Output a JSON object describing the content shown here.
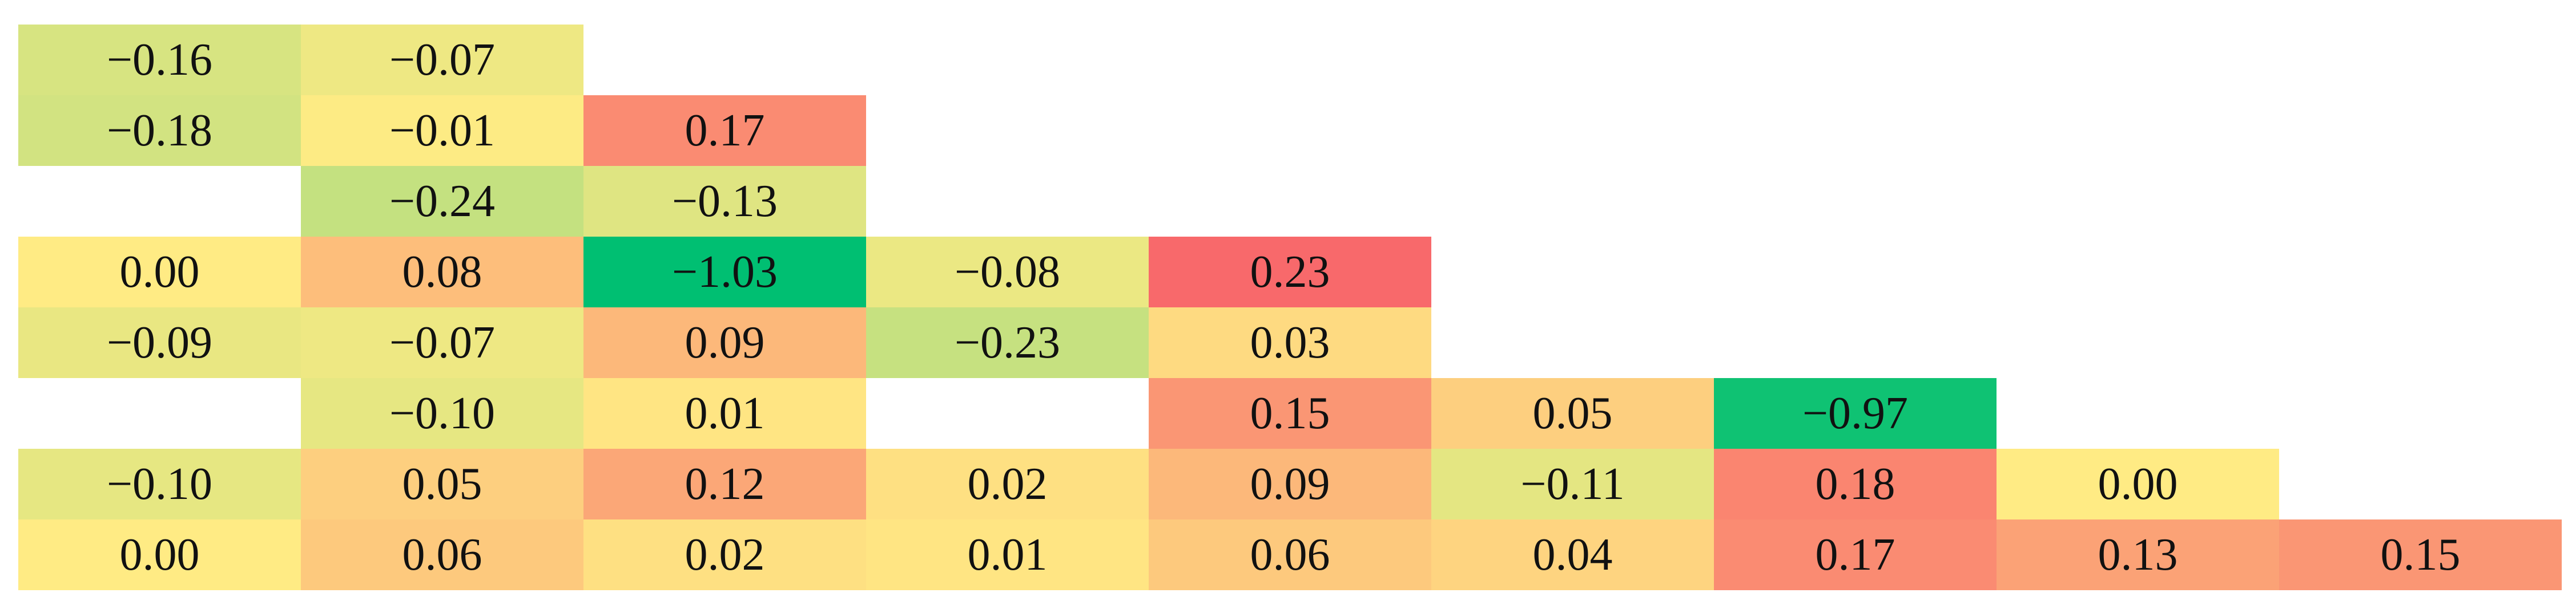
{
  "table": {
    "color_scale": [
      {
        "value": -1.03,
        "color": "#00bf72"
      },
      {
        "value": 0,
        "color": "#ffeb84"
      },
      {
        "value": 0.23,
        "color": "#f8696b"
      }
    ],
    "rows": [
      [
        {
          "value": -0.16,
          "label": "−0.16"
        },
        {
          "value": -0.07,
          "label": "−0.07"
        }
      ],
      [
        {
          "value": -0.18,
          "label": "−0.18"
        },
        {
          "value": -0.01,
          "label": "−0.01"
        },
        {
          "value": 0.17,
          "label": "0.17"
        }
      ],
      [
        null,
        {
          "value": -0.24,
          "label": "−0.24"
        },
        {
          "value": -0.13,
          "label": "−0.13"
        }
      ],
      [
        {
          "value": 0,
          "label": "0.00"
        },
        {
          "value": 0.08,
          "label": "0.08"
        },
        {
          "value": -1.03,
          "label": "−1.03"
        },
        {
          "value": -0.08,
          "label": "−0.08"
        },
        {
          "value": 0.23,
          "label": "0.23"
        }
      ],
      [
        {
          "value": -0.09,
          "label": "−0.09"
        },
        {
          "value": -0.07,
          "label": "−0.07"
        },
        {
          "value": 0.09,
          "label": "0.09"
        },
        {
          "value": -0.23,
          "label": "−0.23"
        },
        {
          "value": 0.03,
          "label": "0.03"
        }
      ],
      [
        null,
        {
          "value": -0.1,
          "label": "−0.10"
        },
        {
          "value": 0.01,
          "label": "0.01"
        },
        null,
        {
          "value": 0.15,
          "label": "0.15"
        },
        {
          "value": 0.05,
          "label": "0.05"
        },
        {
          "value": -0.97,
          "label": "−0.97"
        }
      ],
      [
        {
          "value": -0.1,
          "label": "−0.10"
        },
        {
          "value": 0.05,
          "label": "0.05"
        },
        {
          "value": 0.12,
          "label": "0.12"
        },
        {
          "value": 0.02,
          "label": "0.02"
        },
        {
          "value": 0.09,
          "label": "0.09"
        },
        {
          "value": -0.11,
          "label": "−0.11"
        },
        {
          "value": 0.18,
          "label": "0.18"
        },
        {
          "value": 0,
          "label": "0.00"
        }
      ],
      [
        {
          "value": 0,
          "label": "0.00"
        },
        {
          "value": 0.06,
          "label": "0.06"
        },
        {
          "value": 0.02,
          "label": "0.02"
        },
        {
          "value": 0.01,
          "label": "0.01"
        },
        {
          "value": 0.06,
          "label": "0.06"
        },
        {
          "value": 0.04,
          "label": "0.04"
        },
        {
          "value": 0.17,
          "label": "0.17"
        },
        {
          "value": 0.13,
          "label": "0.13"
        },
        {
          "value": 0.15,
          "label": "0.15"
        }
      ]
    ]
  }
}
